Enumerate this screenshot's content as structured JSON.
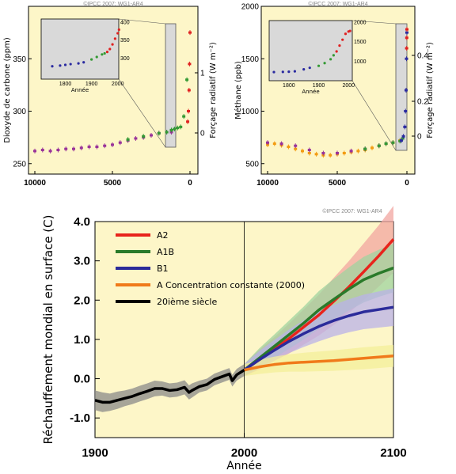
{
  "copyright": "©IPCC 2007: WG1-AR4",
  "chart_data": [
    {
      "type": "scatter",
      "ylabel": "Dioxyde de carbone (ppm)",
      "y2label": "Forçage radiatif (W m⁻²)",
      "xlim": [
        10000,
        0
      ],
      "ylim": [
        240,
        400
      ],
      "x_ticks": [
        "10000",
        "5000",
        "0"
      ],
      "y_ticks": [
        "250",
        "300",
        "350"
      ],
      "y2_ticks": [
        "0",
        "1"
      ],
      "series": [
        {
          "color": "#993399",
          "x": [
            10000,
            9500,
            9000,
            8500,
            8000,
            7500,
            7000,
            6500,
            6000,
            5500,
            5000,
            4500,
            4000,
            3500,
            3000,
            2500,
            2000,
            1500,
            1200
          ],
          "y": [
            262,
            263,
            262,
            263,
            264,
            264,
            265,
            266,
            266,
            267,
            268,
            270,
            272,
            274,
            275,
            277,
            279,
            280,
            280
          ]
        },
        {
          "color": "#339933",
          "x": [
            4000,
            3000,
            2000,
            1500,
            1200,
            1000,
            800,
            600,
            400,
            200
          ],
          "y": [
            273,
            276,
            279,
            280,
            282,
            283,
            284,
            285,
            295,
            330
          ]
        },
        {
          "color": "#e02020",
          "x": [
            150,
            100,
            60,
            30,
            0
          ],
          "y": [
            290,
            300,
            320,
            345,
            375
          ]
        }
      ],
      "inset": {
        "xlabel": "Année",
        "xlim": [
          1750,
          2010
        ],
        "ylim": [
          250,
          400
        ],
        "x_ticks": [
          "1800",
          "1900",
          "2000"
        ],
        "y_ticks": [
          "300",
          "350",
          "400"
        ],
        "x": [
          1750,
          1780,
          1800,
          1820,
          1850,
          1870,
          1900,
          1920,
          1940,
          1950,
          1960,
          1970,
          1980,
          1990,
          2000,
          2005
        ],
        "y": [
          277,
          279,
          281,
          283,
          285,
          288,
          296,
          303,
          310,
          313,
          317,
          325,
          338,
          354,
          369,
          379
        ]
      }
    },
    {
      "type": "scatter",
      "ylabel": "Méthane (ppb)",
      "y2label": "Forçage radiatif (W m⁻²)",
      "xlim": [
        10000,
        0
      ],
      "ylim": [
        400,
        2000
      ],
      "x_ticks": [
        "10000",
        "5000",
        "0"
      ],
      "y_ticks": [
        "500",
        "1000",
        "1500",
        "2000"
      ],
      "y2_ticks": [
        "0",
        "0.2",
        "0.4"
      ],
      "series": [
        {
          "color": "#f39c12",
          "x": [
            10000,
            9500,
            9000,
            8500,
            8000,
            7500,
            7000,
            6500,
            6000,
            5500,
            5000,
            4500,
            4000,
            3500,
            3000,
            2500,
            2000,
            1500,
            1000,
            500
          ],
          "y": [
            680,
            690,
            675,
            660,
            640,
            620,
            600,
            590,
            580,
            580,
            590,
            600,
            610,
            620,
            630,
            650,
            670,
            690,
            700,
            720
          ]
        },
        {
          "color": "#993399",
          "x": [
            10000,
            9000,
            8000,
            7000,
            6000,
            5000,
            4000,
            3000,
            2000,
            1500,
            1000
          ],
          "y": [
            700,
            690,
            670,
            630,
            600,
            600,
            620,
            640,
            670,
            690,
            700
          ]
        },
        {
          "color": "#339933",
          "x": [
            3000,
            2000,
            1500,
            1000,
            500,
            300
          ],
          "y": [
            640,
            670,
            690,
            700,
            715,
            740
          ]
        },
        {
          "color": "#2a2aa0",
          "x": [
            400,
            250,
            150,
            100,
            60,
            30,
            0
          ],
          "y": [
            720,
            760,
            850,
            1000,
            1200,
            1500,
            1750
          ]
        },
        {
          "color": "#e02020",
          "x": [
            20,
            10,
            0
          ],
          "y": [
            1600,
            1700,
            1780
          ]
        }
      ],
      "inset": {
        "xlabel": "Année",
        "xlim": [
          1750,
          2010
        ],
        "ylim": [
          600,
          2000
        ],
        "x_ticks": [
          "1800",
          "1900",
          "2000"
        ],
        "y_ticks": [
          "1000",
          "1500",
          "2000"
        ],
        "x": [
          1750,
          1780,
          1800,
          1820,
          1850,
          1870,
          1900,
          1920,
          1940,
          1950,
          1960,
          1970,
          1980,
          1990,
          2000,
          2005
        ],
        "y": [
          720,
          725,
          730,
          740,
          790,
          830,
          880,
          950,
          1050,
          1150,
          1250,
          1400,
          1550,
          1700,
          1760,
          1775
        ]
      }
    },
    {
      "type": "line",
      "xlabel": "Année",
      "ylabel": "Réchauffement mondial en surface (C)",
      "xlim": [
        1900,
        2100
      ],
      "ylim": [
        -1.5,
        4.0
      ],
      "x_ticks": [
        "1900",
        "2000",
        "2100"
      ],
      "y_ticks": [
        "-1.0",
        "0.0",
        "1.0",
        "2.0",
        "3.0",
        "4.0"
      ],
      "series": [
        {
          "name": "A2",
          "color": "#e8241c",
          "band": "#f1a6a0",
          "x": [
            2000,
            2010,
            2020,
            2030,
            2040,
            2050,
            2060,
            2070,
            2080,
            2090,
            2100
          ],
          "y": [
            0.22,
            0.48,
            0.75,
            1.02,
            1.32,
            1.62,
            1.97,
            2.33,
            2.72,
            3.12,
            3.55
          ],
          "spread": [
            0.15,
            0.25,
            0.3,
            0.38,
            0.45,
            0.52,
            0.6,
            0.66,
            0.72,
            0.78,
            0.85
          ]
        },
        {
          "name": "A1B",
          "color": "#2a7a2a",
          "band": "#9fd39f",
          "x": [
            2000,
            2010,
            2020,
            2030,
            2040,
            2050,
            2060,
            2070,
            2080,
            2090,
            2100
          ],
          "y": [
            0.22,
            0.52,
            0.82,
            1.12,
            1.42,
            1.75,
            2.02,
            2.28,
            2.52,
            2.68,
            2.82
          ],
          "spread": [
            0.15,
            0.25,
            0.3,
            0.36,
            0.42,
            0.48,
            0.52,
            0.55,
            0.58,
            0.6,
            0.62
          ]
        },
        {
          "name": "B1",
          "color": "#2b2b9a",
          "band": "#b9b2e8",
          "x": [
            2000,
            2010,
            2020,
            2030,
            2040,
            2050,
            2060,
            2070,
            2080,
            2090,
            2100
          ],
          "y": [
            0.22,
            0.48,
            0.72,
            0.95,
            1.15,
            1.33,
            1.48,
            1.6,
            1.7,
            1.76,
            1.82
          ],
          "spread": [
            0.15,
            0.22,
            0.26,
            0.3,
            0.34,
            0.38,
            0.4,
            0.42,
            0.44,
            0.46,
            0.48
          ]
        },
        {
          "name": "A Concentration constante (2000)",
          "color": "#f07a1a",
          "band": "#f3ef9a",
          "x": [
            2000,
            2010,
            2020,
            2030,
            2040,
            2050,
            2060,
            2070,
            2080,
            2090,
            2100
          ],
          "y": [
            0.22,
            0.3,
            0.36,
            0.4,
            0.42,
            0.44,
            0.46,
            0.49,
            0.52,
            0.55,
            0.58
          ],
          "spread": [
            0.15,
            0.18,
            0.2,
            0.22,
            0.24,
            0.25,
            0.26,
            0.27,
            0.28,
            0.28,
            0.28
          ]
        },
        {
          "name": "20ième siècle",
          "color": "#000000",
          "band": "#8a8a8a",
          "x": [
            1900,
            1905,
            1910,
            1915,
            1920,
            1925,
            1930,
            1935,
            1940,
            1945,
            1950,
            1955,
            1960,
            1963,
            1965,
            1970,
            1975,
            1980,
            1985,
            1990,
            1992,
            1995,
            2000
          ],
          "y": [
            -0.55,
            -0.6,
            -0.6,
            -0.55,
            -0.5,
            -0.45,
            -0.38,
            -0.32,
            -0.25,
            -0.25,
            -0.3,
            -0.28,
            -0.22,
            -0.35,
            -0.3,
            -0.2,
            -0.15,
            -0.02,
            0.05,
            0.12,
            -0.05,
            0.1,
            0.22
          ],
          "spread": [
            0.25,
            0.25,
            0.22,
            0.22,
            0.2,
            0.2,
            0.2,
            0.2,
            0.2,
            0.18,
            0.18,
            0.18,
            0.18,
            0.18,
            0.18,
            0.15,
            0.15,
            0.15,
            0.15,
            0.15,
            0.15,
            0.15,
            0.15
          ]
        }
      ]
    }
  ]
}
